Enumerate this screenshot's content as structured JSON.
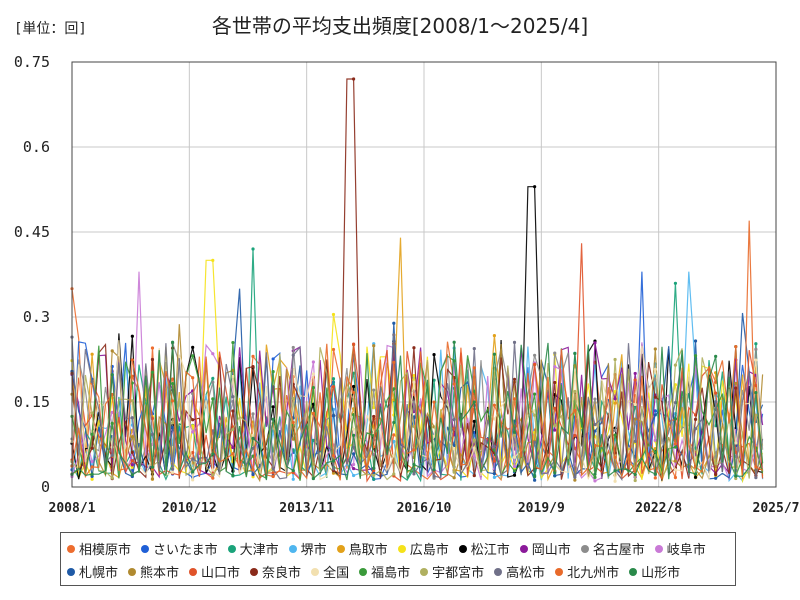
{
  "unit_label": "[単位：回]",
  "chart_data": {
    "type": "line",
    "title": "各世帯の平均支出頻度[2008/1〜2025/4]",
    "unit": "[単位：回]",
    "xlabel": "",
    "ylabel": "",
    "x_range": [
      "2008/1",
      "2025/7"
    ],
    "x_ticks": [
      "2008/1",
      "2010/12",
      "2013/11",
      "2016/10",
      "2019/9",
      "2022/8",
      "2025/7"
    ],
    "ylim": [
      0,
      0.75
    ],
    "y_ticks": [
      "0",
      "0.15",
      "0.3",
      "0.45",
      "0.6",
      "0.75"
    ],
    "grid": true,
    "legend_position": "bottom",
    "series": [
      {
        "name": "相模原市",
        "color": "#ed6d2f"
      },
      {
        "name": "さいたま市",
        "color": "#1f5fd6"
      },
      {
        "name": "大津市",
        "color": "#1aa37a"
      },
      {
        "name": "堺市",
        "color": "#4fb6ef"
      },
      {
        "name": "鳥取市",
        "color": "#e2a11a"
      },
      {
        "name": "広島市",
        "color": "#f5e21a"
      },
      {
        "name": "松江市",
        "color": "#000000"
      },
      {
        "name": "岡山市",
        "color": "#8b1a9a"
      },
      {
        "name": "名古屋市",
        "color": "#8c8c8c"
      },
      {
        "name": "岐阜市",
        "color": "#c97ad6"
      },
      {
        "name": "札幌市",
        "color": "#1f5aa6"
      },
      {
        "name": "熊本市",
        "color": "#b08a30"
      },
      {
        "name": "山口市",
        "color": "#e0532a"
      },
      {
        "name": "奈良市",
        "color": "#8a2a1a"
      },
      {
        "name": "全国",
        "color": "#f2e0b0"
      },
      {
        "name": "福島市",
        "color": "#3a9a3a"
      },
      {
        "name": "宇都宮市",
        "color": "#b0b060"
      },
      {
        "name": "高松市",
        "color": "#707088"
      },
      {
        "name": "北九州市",
        "color": "#e86a2a"
      },
      {
        "name": "山形市",
        "color": "#2a8a4a"
      }
    ],
    "peaks": [
      {
        "series": "奈良市",
        "x": "2014/12",
        "y": 0.72
      },
      {
        "series": "松江市",
        "x": "2019/6",
        "y": 0.53
      },
      {
        "series": "北九州市",
        "x": "2024/11",
        "y": 0.47
      },
      {
        "series": "鳥取市",
        "x": "2016/3",
        "y": 0.44
      },
      {
        "series": "山口市",
        "x": "2020/9",
        "y": 0.43
      },
      {
        "series": "大津市",
        "x": "2012/7",
        "y": 0.42
      },
      {
        "series": "広島市",
        "x": "2011/6",
        "y": 0.4
      },
      {
        "series": "岐阜市",
        "x": "2009/9",
        "y": 0.38
      },
      {
        "series": "さいたま市",
        "x": "2022/3",
        "y": 0.38
      },
      {
        "series": "堺市",
        "x": "2023/5",
        "y": 0.38
      },
      {
        "series": "相模原市",
        "x": "2008/1",
        "y": 0.35
      },
      {
        "series": "札幌市",
        "x": "2012/3",
        "y": 0.35
      }
    ]
  }
}
